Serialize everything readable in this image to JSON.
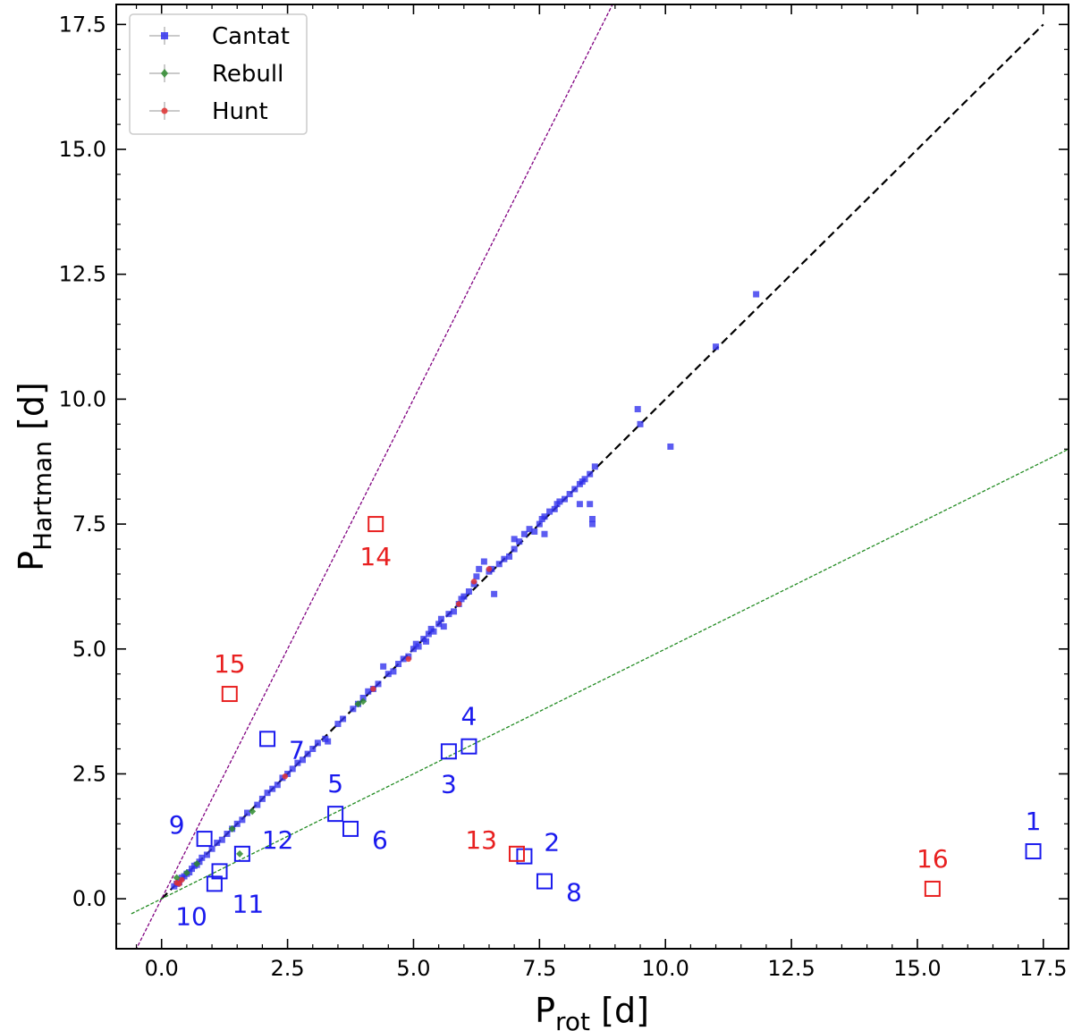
{
  "chart_data": {
    "type": "scatter",
    "xlabel": {
      "main": "P",
      "sub": "rot",
      "unit": "[d]"
    },
    "ylabel": {
      "main": "P",
      "sub": "Hartman",
      "unit": "[d]"
    },
    "xlim": [
      -0.9,
      18.0
    ],
    "ylim": [
      -1.0,
      17.9
    ],
    "xticks": [
      {
        "value": 0.0,
        "label": "0.0"
      },
      {
        "value": 2.5,
        "label": "2.5"
      },
      {
        "value": 5.0,
        "label": "5.0"
      },
      {
        "value": 7.5,
        "label": "7.5"
      },
      {
        "value": 10.0,
        "label": "10.0"
      },
      {
        "value": 12.5,
        "label": "12.5"
      },
      {
        "value": 15.0,
        "label": "15.0"
      },
      {
        "value": 17.5,
        "label": "17.5"
      }
    ],
    "yticks": [
      {
        "value": 0.0,
        "label": "0.0"
      },
      {
        "value": 2.5,
        "label": "2.5"
      },
      {
        "value": 5.0,
        "label": "5.0"
      },
      {
        "value": 7.5,
        "label": "7.5"
      },
      {
        "value": 10.0,
        "label": "10.0"
      },
      {
        "value": 12.5,
        "label": "12.5"
      },
      {
        "value": 15.0,
        "label": "15.0"
      },
      {
        "value": 17.5,
        "label": "17.5"
      }
    ],
    "legend": {
      "position": "top-left",
      "entries": [
        {
          "label": "Cantat",
          "color": "#3333ee",
          "marker": "square"
        },
        {
          "label": "Rebull",
          "color": "#2e8b2e",
          "marker": "diamond"
        },
        {
          "label": "Hunt",
          "color": "#e03030",
          "marker": "circle"
        }
      ]
    },
    "reference_lines": [
      {
        "name": "one-to-one",
        "slope": 1.0,
        "intercept": 0.0,
        "x_range": [
          0.0,
          17.5
        ],
        "color": "#000000",
        "style": "dashed"
      },
      {
        "name": "double-period",
        "slope": 2.0,
        "intercept": 0.0,
        "x_range": [
          -0.9,
          9.0
        ],
        "color": "#800080",
        "style": "dashed"
      },
      {
        "name": "half-period",
        "slope": 0.5,
        "intercept": 0.0,
        "x_range": [
          -0.6,
          18.0
        ],
        "color": "#228b22",
        "style": "dashed"
      }
    ],
    "series": [
      {
        "name": "Cantat",
        "color": "#3333ee",
        "points": [
          [
            0.25,
            0.25
          ],
          [
            0.3,
            0.3
          ],
          [
            0.35,
            0.33
          ],
          [
            0.4,
            0.42
          ],
          [
            0.45,
            0.45
          ],
          [
            0.5,
            0.5
          ],
          [
            0.55,
            0.53
          ],
          [
            0.6,
            0.6
          ],
          [
            0.65,
            0.66
          ],
          [
            0.7,
            0.68
          ],
          [
            0.75,
            0.74
          ],
          [
            0.8,
            0.82
          ],
          [
            0.9,
            0.88
          ],
          [
            1.0,
            1.0
          ],
          [
            1.1,
            1.12
          ],
          [
            1.2,
            1.18
          ],
          [
            1.3,
            1.3
          ],
          [
            1.4,
            1.4
          ],
          [
            1.5,
            1.5
          ],
          [
            1.6,
            1.58
          ],
          [
            1.7,
            1.72
          ],
          [
            1.9,
            1.88
          ],
          [
            2.0,
            2.0
          ],
          [
            2.1,
            2.12
          ],
          [
            2.2,
            2.2
          ],
          [
            2.3,
            2.28
          ],
          [
            2.4,
            2.42
          ],
          [
            2.5,
            2.5
          ],
          [
            2.6,
            2.6
          ],
          [
            2.7,
            2.72
          ],
          [
            2.8,
            2.78
          ],
          [
            2.9,
            2.9
          ],
          [
            3.0,
            3.0
          ],
          [
            3.1,
            3.12
          ],
          [
            3.25,
            3.2
          ],
          [
            3.3,
            3.15
          ],
          [
            3.5,
            3.5
          ],
          [
            3.6,
            3.6
          ],
          [
            3.8,
            3.8
          ],
          [
            3.9,
            3.9
          ],
          [
            4.0,
            4.02
          ],
          [
            4.1,
            4.15
          ],
          [
            4.2,
            4.2
          ],
          [
            4.3,
            4.3
          ],
          [
            4.4,
            4.65
          ],
          [
            4.5,
            4.5
          ],
          [
            4.6,
            4.55
          ],
          [
            4.7,
            4.7
          ],
          [
            4.8,
            4.8
          ],
          [
            4.9,
            4.85
          ],
          [
            5.0,
            5.0
          ],
          [
            5.05,
            5.1
          ],
          [
            5.1,
            5.05
          ],
          [
            5.2,
            5.2
          ],
          [
            5.25,
            5.15
          ],
          [
            5.3,
            5.3
          ],
          [
            5.35,
            5.4
          ],
          [
            5.4,
            5.35
          ],
          [
            5.5,
            5.5
          ],
          [
            5.55,
            5.6
          ],
          [
            5.6,
            5.45
          ],
          [
            5.7,
            5.7
          ],
          [
            5.8,
            5.75
          ],
          [
            5.9,
            5.9
          ],
          [
            5.95,
            6.0
          ],
          [
            6.0,
            6.05
          ],
          [
            6.1,
            6.15
          ],
          [
            6.2,
            6.3
          ],
          [
            6.25,
            6.45
          ],
          [
            6.3,
            6.6
          ],
          [
            6.4,
            6.75
          ],
          [
            6.5,
            6.55
          ],
          [
            6.55,
            6.6
          ],
          [
            6.6,
            6.1
          ],
          [
            6.7,
            6.7
          ],
          [
            6.8,
            6.8
          ],
          [
            6.9,
            6.85
          ],
          [
            7.0,
            7.0
          ],
          [
            7.1,
            7.15
          ],
          [
            7.2,
            7.3
          ],
          [
            7.3,
            7.4
          ],
          [
            7.4,
            7.35
          ],
          [
            7.5,
            7.5
          ],
          [
            7.6,
            7.65
          ],
          [
            7.7,
            7.75
          ],
          [
            7.8,
            7.8
          ],
          [
            7.9,
            7.95
          ],
          [
            8.0,
            8.0
          ],
          [
            8.1,
            8.1
          ],
          [
            8.2,
            8.2
          ],
          [
            8.3,
            8.3
          ],
          [
            8.35,
            8.35
          ],
          [
            8.4,
            8.4
          ],
          [
            8.5,
            8.5
          ],
          [
            8.6,
            8.65
          ],
          [
            7.6,
            7.3
          ],
          [
            7.55,
            7.6
          ],
          [
            7.0,
            7.2
          ],
          [
            7.85,
            7.9
          ],
          [
            8.5,
            7.9
          ],
          [
            8.55,
            7.6
          ],
          [
            8.55,
            7.5
          ],
          [
            8.3,
            7.9
          ],
          [
            9.45,
            9.8
          ],
          [
            9.5,
            9.5
          ],
          [
            10.1,
            9.05
          ],
          [
            11.0,
            11.05
          ],
          [
            11.8,
            12.1
          ]
        ]
      },
      {
        "name": "Rebull",
        "color": "#2e8b2e",
        "points": [
          [
            0.3,
            0.42
          ],
          [
            0.5,
            0.52
          ],
          [
            0.7,
            0.7
          ],
          [
            1.4,
            1.4
          ],
          [
            1.8,
            1.75
          ],
          [
            3.9,
            3.9
          ],
          [
            4.0,
            3.95
          ],
          [
            1.55,
            0.9
          ]
        ]
      },
      {
        "name": "Hunt",
        "color": "#e03030",
        "points": [
          [
            0.3,
            0.32
          ],
          [
            0.35,
            0.3
          ],
          [
            0.4,
            0.38
          ],
          [
            2.45,
            2.45
          ],
          [
            4.2,
            4.2
          ],
          [
            4.9,
            4.8
          ],
          [
            5.9,
            5.9
          ],
          [
            6.2,
            6.35
          ],
          [
            6.5,
            6.6
          ]
        ]
      }
    ],
    "highlighted": [
      {
        "label": "1",
        "x": 17.3,
        "y": 0.95,
        "color": "#1a1aee",
        "label_pos": "above"
      },
      {
        "label": "2",
        "x": 7.2,
        "y": 0.85,
        "color": "#1a1aee",
        "label_pos": "upper-right"
      },
      {
        "label": "3",
        "x": 5.7,
        "y": 2.95,
        "color": "#1a1aee",
        "label_pos": "below"
      },
      {
        "label": "4",
        "x": 6.1,
        "y": 3.05,
        "color": "#1a1aee",
        "label_pos": "above"
      },
      {
        "label": "5",
        "x": 3.45,
        "y": 1.7,
        "color": "#1a1aee",
        "label_pos": "above"
      },
      {
        "label": "6",
        "x": 3.75,
        "y": 1.4,
        "color": "#1a1aee",
        "label_pos": "right"
      },
      {
        "label": "7",
        "x": 2.1,
        "y": 3.2,
        "color": "#1a1aee",
        "label_pos": "right"
      },
      {
        "label": "8",
        "x": 7.6,
        "y": 0.35,
        "color": "#1a1aee",
        "label_pos": "right"
      },
      {
        "label": "9",
        "x": 0.85,
        "y": 1.2,
        "color": "#1a1aee",
        "label_pos": "upper-left"
      },
      {
        "label": "10",
        "x": 1.05,
        "y": 0.3,
        "color": "#1a1aee",
        "label_pos": "lower-left"
      },
      {
        "label": "11",
        "x": 1.15,
        "y": 0.55,
        "color": "#1a1aee",
        "label_pos": "lower-right"
      },
      {
        "label": "12",
        "x": 1.6,
        "y": 0.9,
        "color": "#1a1aee",
        "label_pos": "upper-right"
      },
      {
        "label": "13",
        "x": 7.05,
        "y": 0.9,
        "color": "#e82020",
        "label_pos": "upper-left"
      },
      {
        "label": "14",
        "x": 4.25,
        "y": 7.5,
        "color": "#e82020",
        "label_pos": "below"
      },
      {
        "label": "15",
        "x": 1.35,
        "y": 4.1,
        "color": "#e82020",
        "label_pos": "above"
      },
      {
        "label": "16",
        "x": 15.3,
        "y": 0.2,
        "color": "#e82020",
        "label_pos": "above"
      }
    ]
  }
}
